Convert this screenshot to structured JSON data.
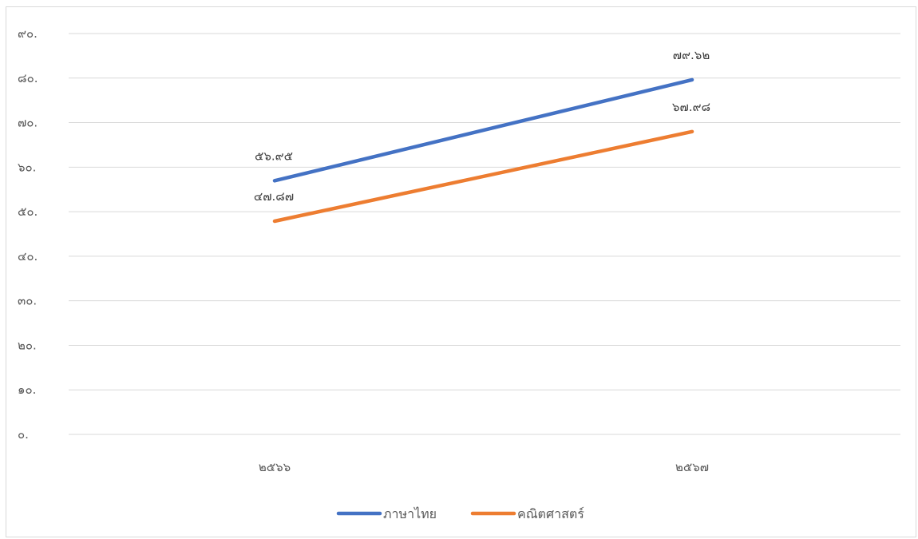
{
  "chart_data": {
    "type": "line",
    "categories": [
      "๒๕๖๖",
      "๒๕๖๗"
    ],
    "series": [
      {
        "name": "ภาษาไทย",
        "values": [
          56.95,
          79.62
        ],
        "labels": [
          "๕๖.๙๕",
          "๗๙.๖๒"
        ],
        "color": "#4472c4"
      },
      {
        "name": "คณิตศาสตร์",
        "values": [
          47.87,
          67.98
        ],
        "labels": [
          "๔๗.๘๗",
          "๖๗.๙๘"
        ],
        "color": "#ed7d31"
      }
    ],
    "y_ticks": [
      0,
      10,
      20,
      30,
      40,
      50,
      60,
      70,
      80,
      90
    ],
    "y_tick_labels": [
      "๐.",
      "๑๐.",
      "๒๐.",
      "๓๐.",
      "๔๐.",
      "๕๐.",
      "๖๐.",
      "๗๐.",
      "๘๐.",
      "๙๐."
    ],
    "ylim": [
      0,
      90
    ],
    "grid": true,
    "legend_position": "bottom",
    "title": "",
    "xlabel": "",
    "ylabel": ""
  },
  "colors": {
    "grid": "#d9d9d9",
    "axis_text": "#595959"
  }
}
